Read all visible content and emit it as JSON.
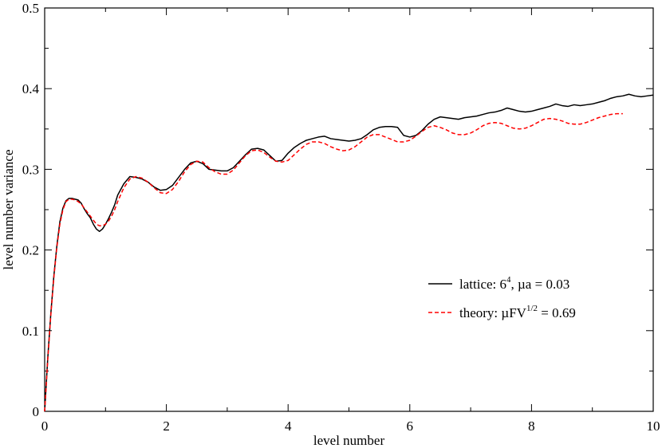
{
  "chart_data": {
    "type": "line",
    "title": "",
    "xlabel": "level number",
    "ylabel": "level number variance",
    "xlim": [
      0,
      10
    ],
    "ylim": [
      0,
      0.5
    ],
    "xticks": [
      0,
      2,
      4,
      6,
      8,
      10
    ],
    "xtick_labels": [
      "0",
      "2",
      "4",
      "6",
      "8",
      "10"
    ],
    "yticks": [
      0,
      0.1,
      0.2,
      0.3,
      0.4,
      0.5
    ],
    "ytick_labels": [
      "0",
      "0.1",
      "0.2",
      "0.3",
      "0.4",
      "0.5"
    ],
    "grid": false,
    "legend_position": "right",
    "series": [
      {
        "name": "lattice",
        "legend_parts": [
          "lattice: 6",
          "4",
          ", µa = 0.03"
        ],
        "color": "#000000",
        "dash": "solid",
        "x": [
          0,
          0.05,
          0.1,
          0.15,
          0.2,
          0.25,
          0.3,
          0.35,
          0.4,
          0.45,
          0.5,
          0.55,
          0.6,
          0.65,
          0.7,
          0.75,
          0.8,
          0.85,
          0.9,
          0.95,
          1.0,
          1.05,
          1.1,
          1.15,
          1.2,
          1.3,
          1.4,
          1.5,
          1.6,
          1.7,
          1.8,
          1.9,
          2.0,
          2.1,
          2.2,
          2.3,
          2.4,
          2.5,
          2.6,
          2.7,
          2.8,
          2.9,
          3.0,
          3.1,
          3.2,
          3.3,
          3.4,
          3.5,
          3.6,
          3.7,
          3.8,
          3.9,
          4.0,
          4.1,
          4.2,
          4.3,
          4.4,
          4.5,
          4.6,
          4.7,
          4.8,
          4.9,
          5.0,
          5.1,
          5.2,
          5.3,
          5.4,
          5.5,
          5.6,
          5.7,
          5.8,
          5.9,
          6.0,
          6.1,
          6.2,
          6.3,
          6.4,
          6.5,
          6.6,
          6.7,
          6.8,
          6.9,
          7.0,
          7.1,
          7.2,
          7.3,
          7.4,
          7.5,
          7.6,
          7.7,
          7.8,
          7.9,
          8.0,
          8.1,
          8.2,
          8.3,
          8.4,
          8.5,
          8.6,
          8.7,
          8.8,
          8.9,
          9.0,
          9.1,
          9.2,
          9.3,
          9.4,
          9.5,
          9.6,
          9.7,
          9.8,
          9.9,
          10.0
        ],
        "y": [
          0,
          0.065,
          0.12,
          0.167,
          0.205,
          0.235,
          0.252,
          0.261,
          0.264,
          0.264,
          0.263,
          0.262,
          0.258,
          0.251,
          0.245,
          0.24,
          0.232,
          0.226,
          0.223,
          0.226,
          0.232,
          0.239,
          0.247,
          0.256,
          0.268,
          0.282,
          0.291,
          0.29,
          0.288,
          0.284,
          0.278,
          0.274,
          0.275,
          0.28,
          0.29,
          0.3,
          0.308,
          0.31,
          0.307,
          0.3,
          0.299,
          0.298,
          0.298,
          0.302,
          0.31,
          0.318,
          0.325,
          0.326,
          0.324,
          0.317,
          0.31,
          0.311,
          0.32,
          0.327,
          0.332,
          0.336,
          0.338,
          0.34,
          0.341,
          0.338,
          0.337,
          0.336,
          0.335,
          0.336,
          0.338,
          0.343,
          0.349,
          0.352,
          0.353,
          0.353,
          0.352,
          0.342,
          0.34,
          0.342,
          0.348,
          0.356,
          0.362,
          0.365,
          0.364,
          0.363,
          0.362,
          0.364,
          0.365,
          0.366,
          0.368,
          0.37,
          0.371,
          0.373,
          0.376,
          0.374,
          0.372,
          0.371,
          0.372,
          0.374,
          0.376,
          0.378,
          0.381,
          0.379,
          0.378,
          0.38,
          0.379,
          0.38,
          0.381,
          0.383,
          0.385,
          0.388,
          0.39,
          0.391,
          0.393,
          0.391,
          0.39,
          0.391,
          0.392
        ]
      },
      {
        "name": "theory",
        "legend_parts": [
          "theory: µFV",
          "1/2",
          " = 0.69"
        ],
        "color": "#ff0000",
        "dash": "dashed",
        "x": [
          0,
          0.05,
          0.1,
          0.15,
          0.2,
          0.25,
          0.3,
          0.35,
          0.4,
          0.45,
          0.5,
          0.55,
          0.6,
          0.65,
          0.7,
          0.75,
          0.8,
          0.85,
          0.9,
          0.95,
          1.0,
          1.05,
          1.1,
          1.15,
          1.2,
          1.3,
          1.4,
          1.5,
          1.6,
          1.7,
          1.8,
          1.9,
          2.0,
          2.1,
          2.2,
          2.3,
          2.4,
          2.5,
          2.6,
          2.7,
          2.8,
          2.9,
          3.0,
          3.1,
          3.2,
          3.3,
          3.4,
          3.5,
          3.6,
          3.7,
          3.8,
          3.9,
          4.0,
          4.1,
          4.2,
          4.3,
          4.4,
          4.5,
          4.6,
          4.7,
          4.8,
          4.9,
          5.0,
          5.1,
          5.2,
          5.3,
          5.4,
          5.5,
          5.6,
          5.7,
          5.8,
          5.9,
          6.0,
          6.1,
          6.2,
          6.3,
          6.4,
          6.5,
          6.6,
          6.7,
          6.8,
          6.9,
          7.0,
          7.1,
          7.2,
          7.3,
          7.4,
          7.5,
          7.6,
          7.7,
          7.8,
          7.9,
          8.0,
          8.1,
          8.2,
          8.3,
          8.4,
          8.5,
          8.6,
          8.7,
          8.8,
          8.9,
          9.0,
          9.1,
          9.2,
          9.3,
          9.4,
          9.5
        ],
        "y": [
          0,
          0.063,
          0.118,
          0.165,
          0.203,
          0.232,
          0.25,
          0.26,
          0.263,
          0.263,
          0.262,
          0.26,
          0.257,
          0.252,
          0.247,
          0.242,
          0.237,
          0.232,
          0.23,
          0.23,
          0.232,
          0.236,
          0.242,
          0.25,
          0.26,
          0.277,
          0.288,
          0.291,
          0.289,
          0.284,
          0.277,
          0.271,
          0.27,
          0.275,
          0.285,
          0.297,
          0.306,
          0.31,
          0.309,
          0.302,
          0.297,
          0.294,
          0.294,
          0.299,
          0.308,
          0.317,
          0.323,
          0.324,
          0.321,
          0.315,
          0.31,
          0.309,
          0.311,
          0.318,
          0.325,
          0.331,
          0.334,
          0.334,
          0.332,
          0.328,
          0.325,
          0.323,
          0.324,
          0.328,
          0.334,
          0.34,
          0.343,
          0.343,
          0.34,
          0.337,
          0.334,
          0.334,
          0.336,
          0.341,
          0.347,
          0.352,
          0.354,
          0.352,
          0.349,
          0.345,
          0.343,
          0.343,
          0.345,
          0.349,
          0.354,
          0.357,
          0.358,
          0.357,
          0.354,
          0.351,
          0.35,
          0.351,
          0.354,
          0.358,
          0.362,
          0.363,
          0.362,
          0.36,
          0.357,
          0.356,
          0.356,
          0.358,
          0.361,
          0.364,
          0.366,
          0.368,
          0.369,
          0.369
        ]
      }
    ]
  }
}
